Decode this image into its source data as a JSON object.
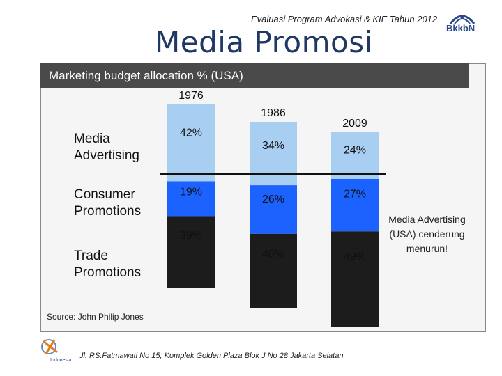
{
  "header": {
    "subtitle": "Evaluasi Program Advokasi & KIE Tahun 2012",
    "title": "Media Promosi",
    "logo_text": "BkkbN"
  },
  "banner": {
    "label": "Marketing budget allocation % (USA)"
  },
  "row_labels": [
    {
      "line1": "Media",
      "line2": "Advertising"
    },
    {
      "line1": "Consumer",
      "line2": "Promotions"
    },
    {
      "line1": "Trade",
      "line2": "Promotions"
    }
  ],
  "source": "Source: John Philip Jones",
  "note": "Media Advertising (USA) cenderung menurun!",
  "footer": {
    "address": "Jl. RS.Fatmawati No 15, Komplek Golden Plaza Blok J No 28 Jakarta Selatan",
    "logo_text": "Indonesia"
  },
  "colors": {
    "media_advertising": "#a8cff2",
    "consumer_promotions": "#1b62ff",
    "trade_promotions": "#1c1c1c",
    "title": "#1f3864"
  },
  "chart_data": {
    "type": "bar",
    "stacked": true,
    "categories": [
      "1976",
      "1986",
      "2009"
    ],
    "series": [
      {
        "name": "Media Advertising",
        "values": [
          42,
          34,
          24
        ],
        "labels": [
          "42%",
          "34%",
          "24%"
        ]
      },
      {
        "name": "Consumer Promotions",
        "values": [
          19,
          26,
          27
        ],
        "labels": [
          "19%",
          "26%",
          "27%"
        ]
      },
      {
        "name": "Trade Promotions",
        "values": [
          39,
          40,
          49
        ],
        "labels": [
          "39%",
          "40%",
          "49%"
        ]
      }
    ],
    "title": "Marketing budget allocation % (USA)"
  }
}
